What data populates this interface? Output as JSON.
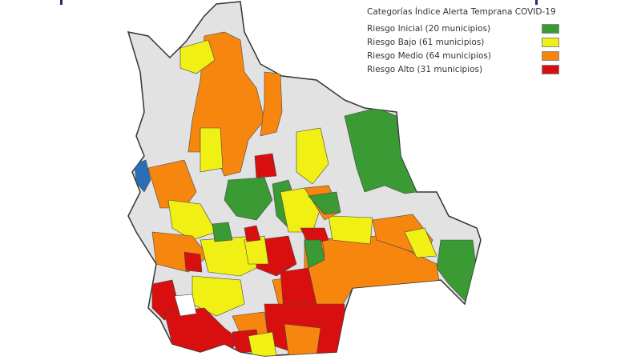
{
  "legend": {
    "title": "Categorías Índice Alerta Temprana COVID-19",
    "items": [
      {
        "label": "Riesgo Inicial (20 municipios)",
        "color": "#3a9a34"
      },
      {
        "label": "Riesgo Bajo (61 municipios)",
        "color": "#f0f014"
      },
      {
        "label": "Riesgo Medio (64 municipios)",
        "color": "#f7860f"
      },
      {
        "label": "Riesgo Alto (31 municipios)",
        "color": "#d90f0f"
      }
    ]
  },
  "colors": {
    "no_data": "#e2e2e2",
    "lake": "#2a6fb5",
    "border": "#333333"
  }
}
